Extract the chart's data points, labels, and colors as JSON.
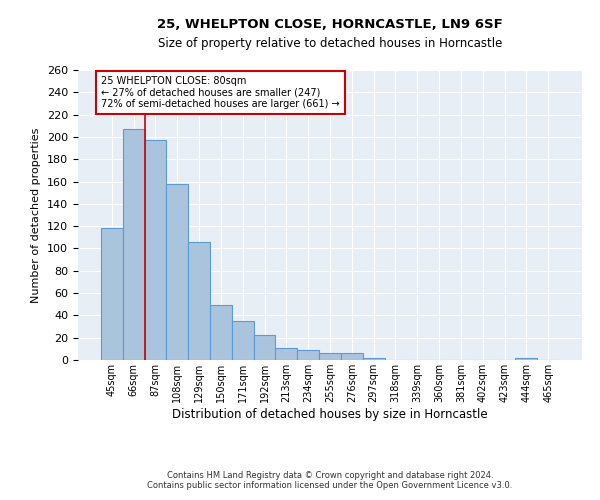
{
  "title1": "25, WHELPTON CLOSE, HORNCASTLE, LN9 6SF",
  "title2": "Size of property relative to detached houses in Horncastle",
  "xlabel": "Distribution of detached houses by size in Horncastle",
  "ylabel": "Number of detached properties",
  "categories": [
    "45sqm",
    "66sqm",
    "87sqm",
    "108sqm",
    "129sqm",
    "150sqm",
    "171sqm",
    "192sqm",
    "213sqm",
    "234sqm",
    "255sqm",
    "276sqm",
    "297sqm",
    "318sqm",
    "339sqm",
    "360sqm",
    "381sqm",
    "402sqm",
    "423sqm",
    "444sqm",
    "465sqm"
  ],
  "values": [
    118,
    207,
    197,
    158,
    106,
    49,
    35,
    22,
    11,
    9,
    6,
    6,
    2,
    0,
    0,
    0,
    0,
    0,
    0,
    2,
    0
  ],
  "bar_color": "#aac4dd",
  "bar_edge_color": "#5b9bd5",
  "background_color": "#e8eef5",
  "grid_color": "#ffffff",
  "property_line_x": 1.5,
  "property_label": "25 WHELPTON CLOSE: 80sqm",
  "annotation_line1": "← 27% of detached houses are smaller (247)",
  "annotation_line2": "72% of semi-detached houses are larger (661) →",
  "annotation_box_color": "#ffffff",
  "annotation_box_edge": "#cc0000",
  "property_line_color": "#cc0000",
  "footnote1": "Contains HM Land Registry data © Crown copyright and database right 2024.",
  "footnote2": "Contains public sector information licensed under the Open Government Licence v3.0.",
  "ylim": [
    0,
    260
  ],
  "yticks": [
    0,
    20,
    40,
    60,
    80,
    100,
    120,
    140,
    160,
    180,
    200,
    220,
    240,
    260
  ]
}
